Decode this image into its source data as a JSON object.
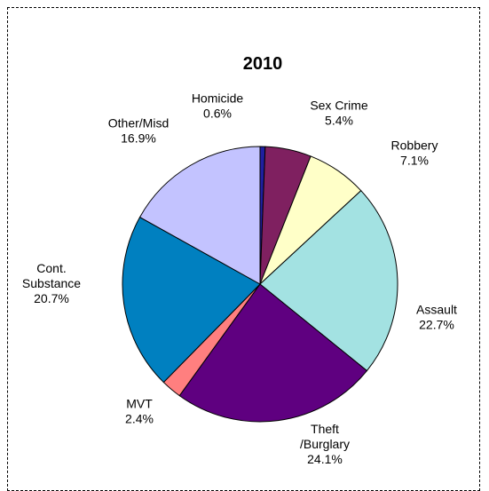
{
  "chart_data": {
    "type": "pie",
    "title": "2010",
    "slices": [
      {
        "name": "Homicide",
        "value": 0.6,
        "display": "0.6%",
        "color": "#1f1f9f"
      },
      {
        "name": "Sex Crime",
        "value": 5.4,
        "display": "5.4%",
        "color": "#7f2060"
      },
      {
        "name": "Robbery",
        "value": 7.1,
        "display": "7.1%",
        "color": "#ffffc8"
      },
      {
        "name": "Assault",
        "value": 22.7,
        "display": "22.7%",
        "color": "#a3e2e2"
      },
      {
        "name": "Theft",
        "name2": "/Burglary",
        "value": 24.1,
        "display": "24.1%",
        "color": "#5f0080"
      },
      {
        "name": "MVT",
        "value": 2.4,
        "display": "2.4%",
        "color": "#ff7f7f"
      },
      {
        "name": "Cont.",
        "name2": "Substance",
        "value": 20.7,
        "display": "20.7%",
        "color": "#0080c0"
      },
      {
        "name": "Other/Misd",
        "value": 16.9,
        "display": "16.9%",
        "color": "#c3c3ff"
      }
    ]
  }
}
